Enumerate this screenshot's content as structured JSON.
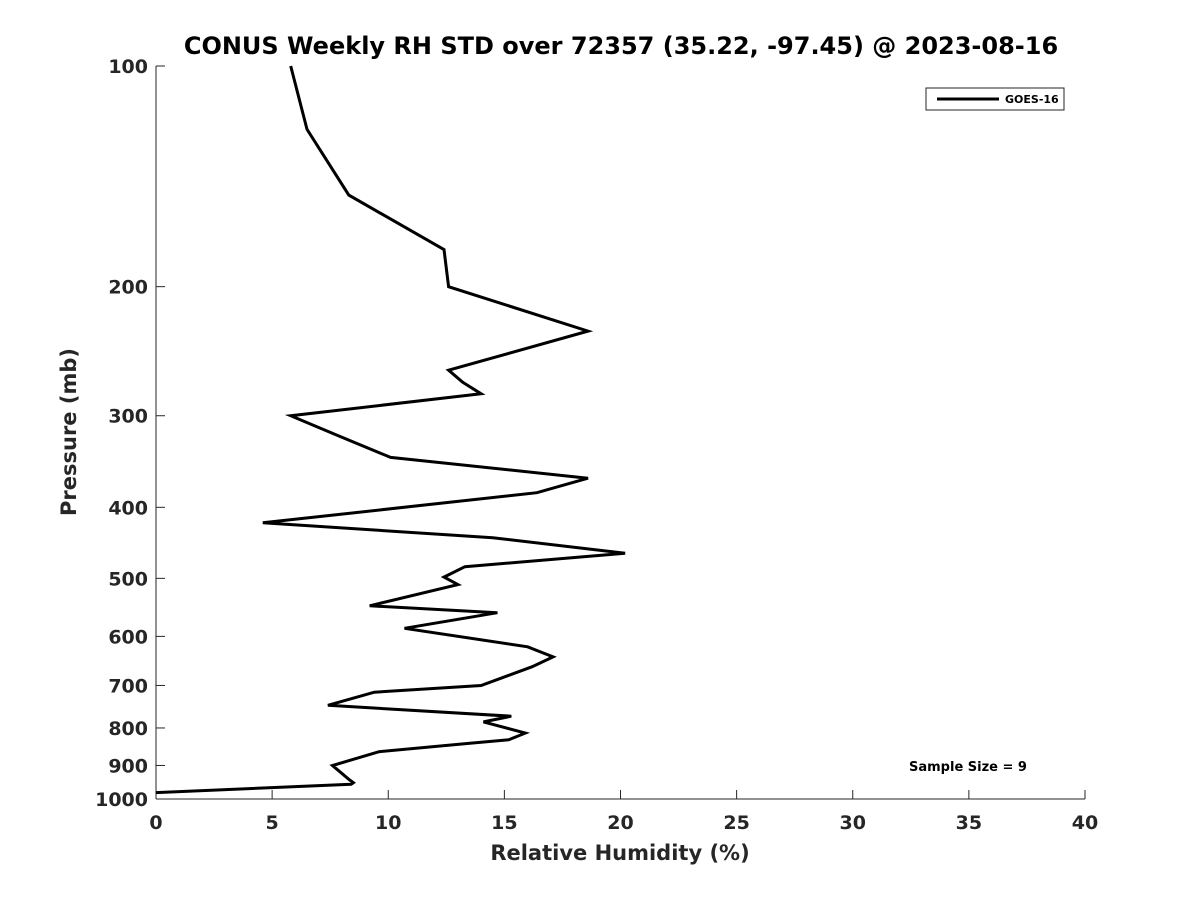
{
  "chart_data": {
    "type": "line",
    "title": "CONUS Weekly RH STD over 72357 (35.22, -97.45) @ 2023-08-16",
    "xlabel": "Relative Humidity (%)",
    "ylabel": "Pressure (mb)",
    "xlim": [
      0,
      40
    ],
    "ylim": [
      100,
      1000
    ],
    "yscale": "log",
    "y_reversed": true,
    "x_ticks": [
      "0",
      "5",
      "10",
      "15",
      "20",
      "25",
      "30",
      "35",
      "40"
    ],
    "y_ticks": [
      "100",
      "200",
      "300",
      "400",
      "500",
      "600",
      "700",
      "800",
      "900",
      "1000"
    ],
    "grid": false,
    "legend_location": "top-right",
    "annotation": "Sample Size = 9",
    "series": [
      {
        "name": "GOES-16",
        "color": "#000000",
        "x": [
          5.8,
          6.5,
          8.3,
          12.4,
          12.6,
          18.6,
          12.6,
          13.2,
          14.0,
          5.8,
          7.9,
          10.1,
          18.6,
          16.4,
          4.6,
          14.5,
          20.2,
          13.3,
          12.4,
          13.0,
          9.2,
          14.7,
          10.7,
          16.0,
          17.1,
          16.2,
          14.0,
          9.4,
          7.4,
          15.3,
          14.1,
          15.9,
          15.2,
          13.4,
          9.6,
          7.6,
          8.3,
          8.5,
          8.4,
          0.0
        ],
        "y": [
          100,
          122,
          150,
          178,
          200,
          230,
          260,
          270,
          280,
          300,
          320,
          342,
          365,
          382,
          420,
          440,
          462,
          482,
          498,
          510,
          545,
          557,
          585,
          620,
          640,
          660,
          700,
          715,
          745,
          771,
          785,
          813,
          830,
          840,
          862,
          900,
          940,
          950,
          955,
          980
        ]
      }
    ]
  }
}
